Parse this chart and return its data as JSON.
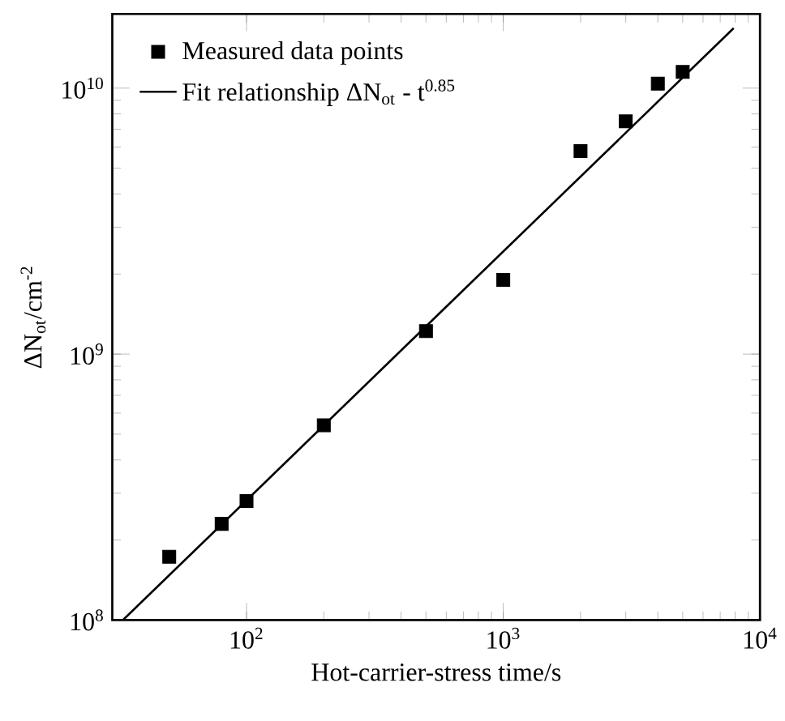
{
  "chart_data": {
    "type": "scatter",
    "xlabel": "Hot-carrier-stress time/s",
    "ylabel": "ΔN$_{ot}$/cm$^{-2}$",
    "log": "xy",
    "legend": "top left",
    "xlim": [
      30,
      10000
    ],
    "ylim": [
      100000000,
      19000000000
    ],
    "xticks": [
      {
        "value": 100,
        "label": "10$^{2}$"
      },
      {
        "value": 1000,
        "label": "10$^{3}$"
      },
      {
        "value": 10000,
        "label": "10$^{4}$"
      }
    ],
    "yticks": [
      {
        "value": 100000000,
        "label": "10$^{8}$"
      },
      {
        "value": 1000000000,
        "label": "10$^{9}$"
      },
      {
        "value": 10000000000,
        "label": "10$^{10}$"
      }
    ],
    "series": [
      {
        "name": "Measured data points",
        "marker": "square",
        "color": "#000000",
        "x": [
          50,
          80,
          100,
          200,
          500,
          1000,
          2000,
          3000,
          4000,
          5000
        ],
        "values": [
          173000000,
          230000000,
          280000000,
          540000000,
          1220000000,
          1900000000,
          5800000000,
          7500000000,
          10400000000,
          11500000000
        ]
      },
      {
        "name": "Fit relationship ΔN$_{ot}$ - t$^{0.85}$",
        "type": "line",
        "marker": "none",
        "line_style": "solid",
        "color": "#000000",
        "x": [
          33,
          7900
        ],
        "values": [
          100000000,
          16800000000
        ]
      }
    ]
  }
}
